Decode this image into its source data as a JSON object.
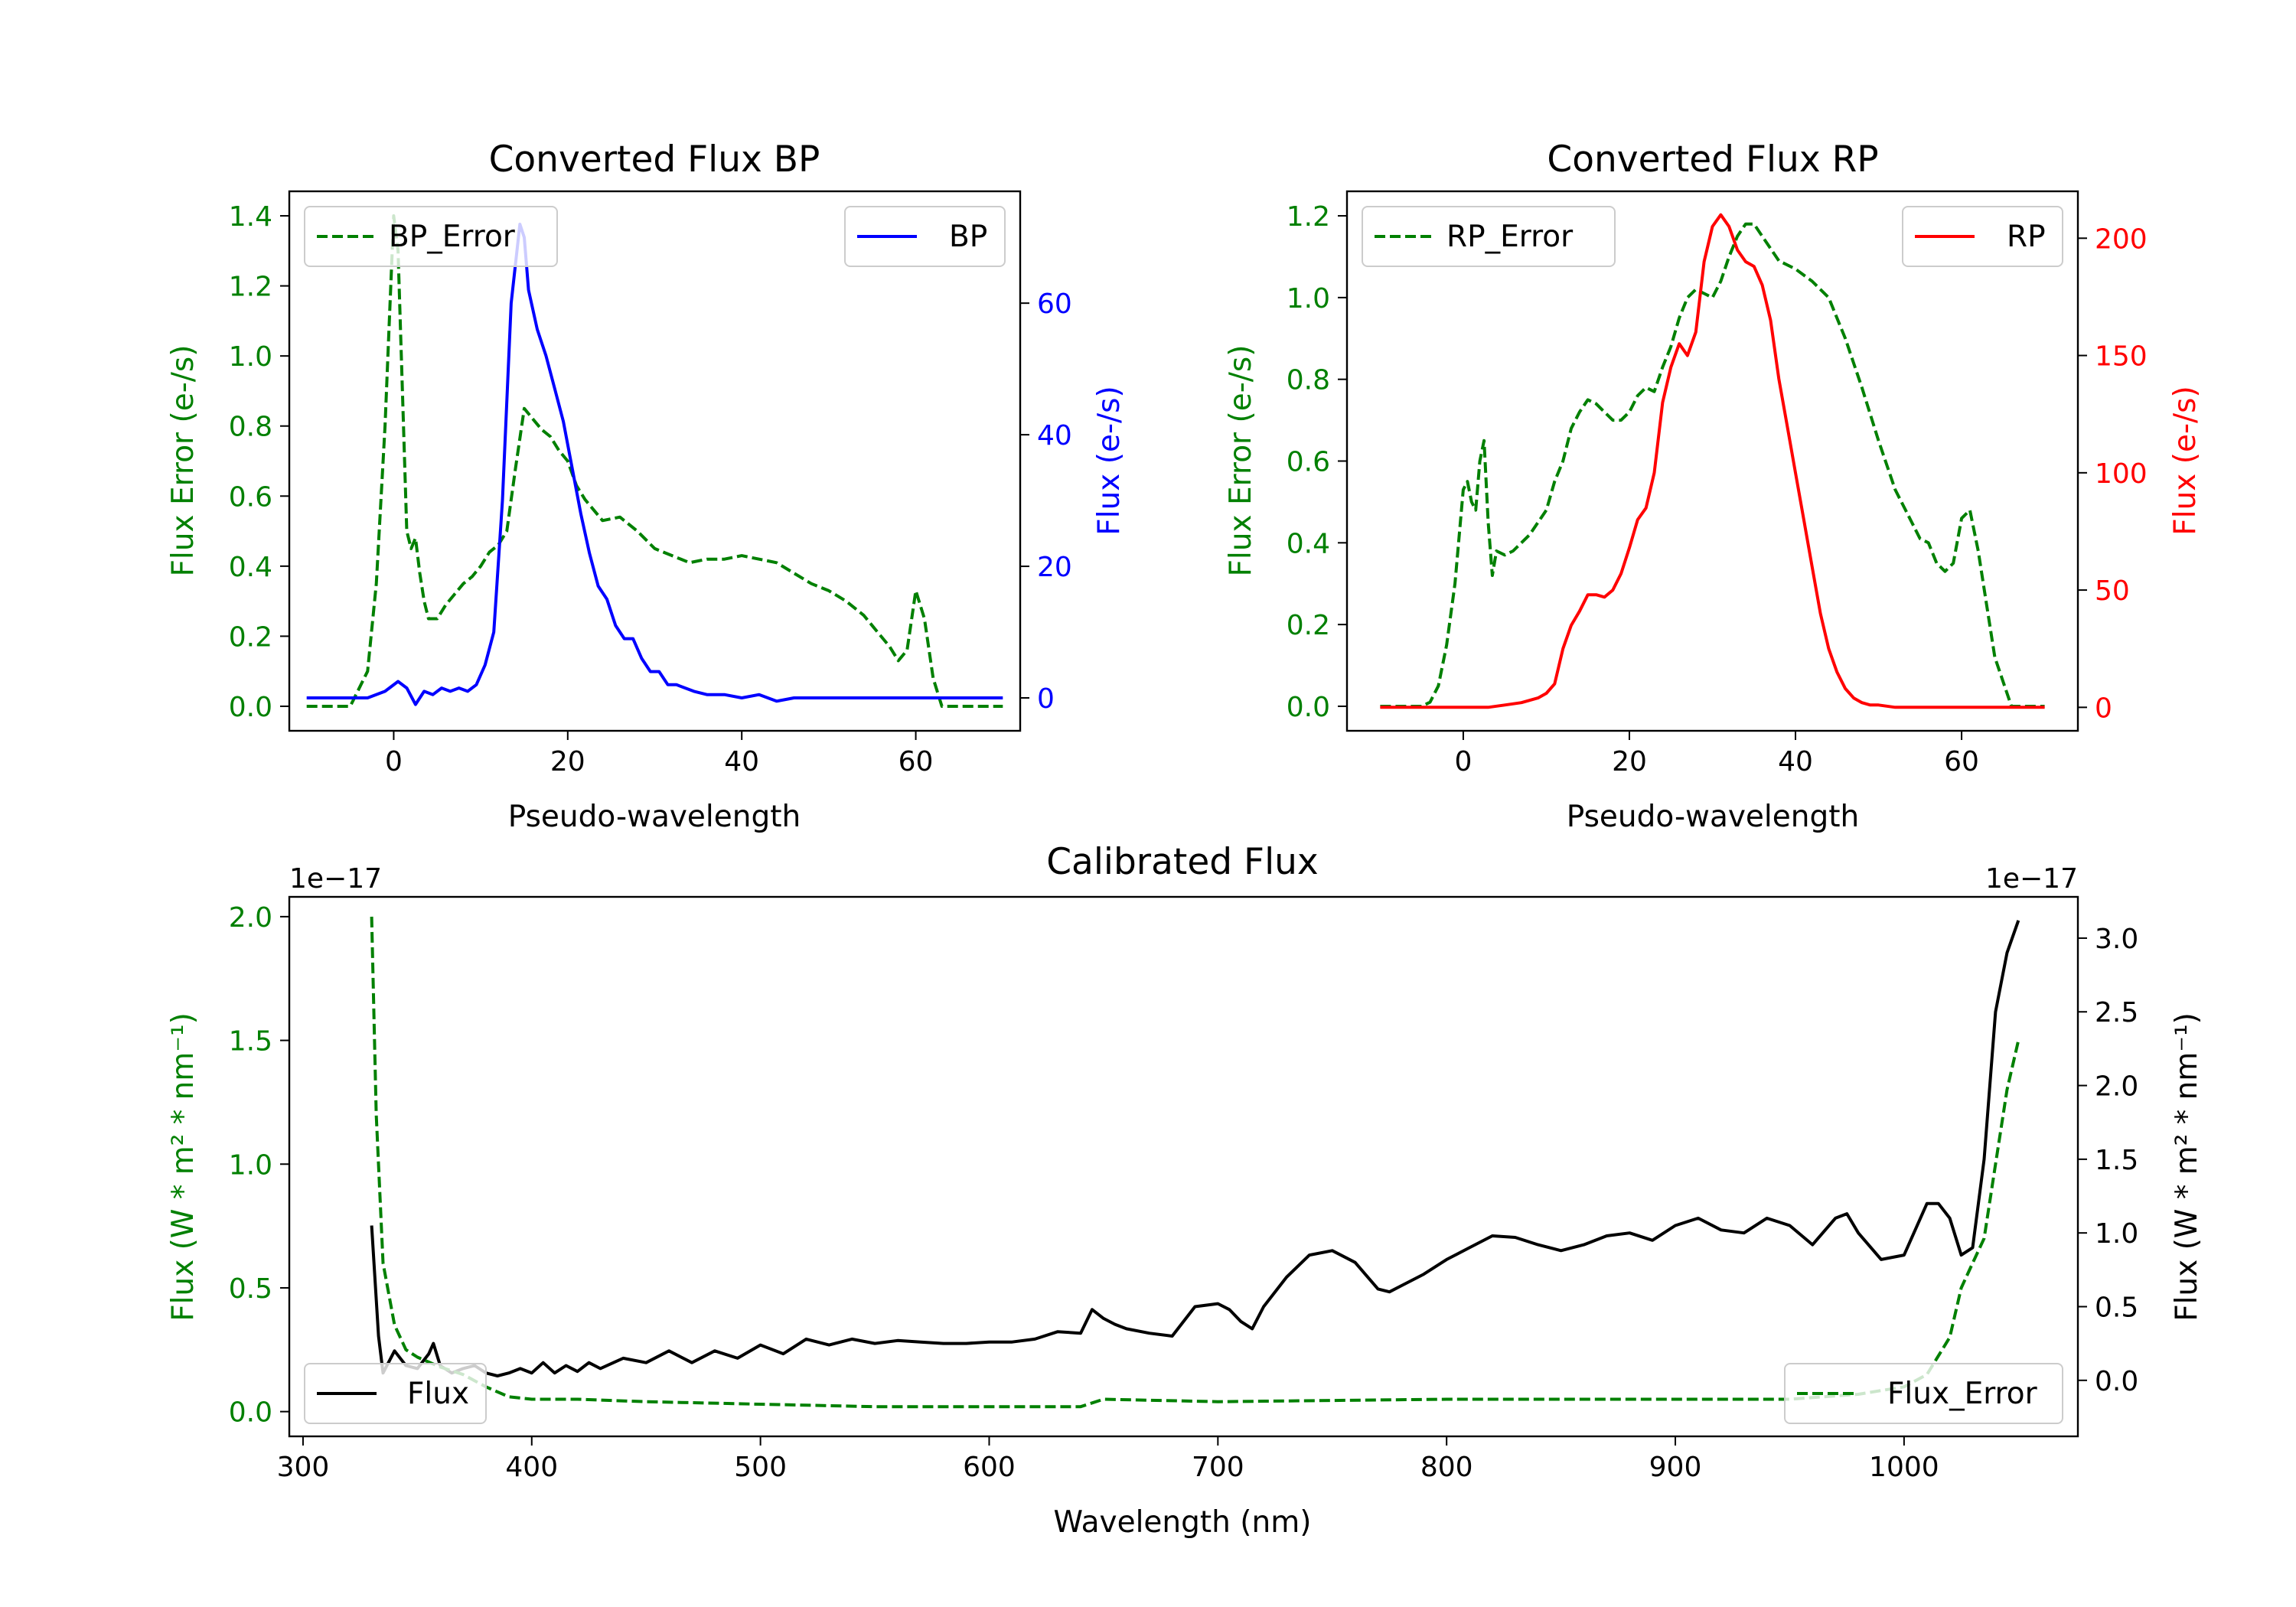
{
  "chart_data": [
    {
      "type": "line",
      "title": "Converted Flux BP",
      "xlabel": "Pseudo-wavelength",
      "ylabel_left": "Flux Error (e-/s)",
      "ylabel_right": "Flux (e-/s)",
      "xlim": [
        -12,
        72
      ],
      "ylim_left": [
        -0.07,
        1.47
      ],
      "ylim_right": [
        -5,
        77
      ],
      "xticks": [
        0,
        20,
        40,
        60
      ],
      "xtick_labels": [
        "0",
        "20",
        "40",
        "60"
      ],
      "yticks_left": [
        0.0,
        0.2,
        0.4,
        0.6,
        0.8,
        1.0,
        1.2,
        1.4
      ],
      "ytick_labels_left": [
        "0.0",
        "0.2",
        "0.4",
        "0.6",
        "0.8",
        "1.0",
        "1.2",
        "1.4"
      ],
      "yticks_right": [
        0,
        20,
        40,
        60
      ],
      "ytick_labels_right": [
        "0",
        "20",
        "40",
        "60"
      ],
      "left_color": "#008000",
      "right_color": "#0000ff",
      "legend_left": {
        "label": "BP_Error",
        "position": "upper left"
      },
      "legend_right": {
        "label": "BP",
        "position": "upper right"
      },
      "series": [
        {
          "name": "BP_Error",
          "axis": "left",
          "color": "#008000",
          "style": "dashed",
          "x": [
            -10,
            -5,
            -3,
            -2,
            -1,
            -0.5,
            0,
            0.5,
            1,
            1.5,
            2,
            2.5,
            3,
            3.5,
            4,
            5,
            6,
            7,
            8,
            9,
            10,
            11,
            12,
            13,
            14,
            15,
            16,
            17,
            18,
            19,
            20,
            21,
            22,
            24,
            26,
            28,
            30,
            32,
            34,
            36,
            38,
            40,
            42,
            44,
            46,
            48,
            50,
            52,
            54,
            56,
            57,
            58,
            59,
            60,
            61,
            62,
            63,
            65,
            70
          ],
          "y": [
            0.0,
            0.0,
            0.1,
            0.35,
            0.8,
            1.1,
            1.4,
            1.3,
            0.9,
            0.5,
            0.45,
            0.48,
            0.38,
            0.3,
            0.25,
            0.25,
            0.29,
            0.32,
            0.35,
            0.37,
            0.4,
            0.44,
            0.46,
            0.5,
            0.68,
            0.85,
            0.82,
            0.79,
            0.77,
            0.73,
            0.7,
            0.63,
            0.59,
            0.53,
            0.54,
            0.5,
            0.45,
            0.43,
            0.41,
            0.42,
            0.42,
            0.43,
            0.42,
            0.41,
            0.38,
            0.35,
            0.33,
            0.3,
            0.26,
            0.2,
            0.17,
            0.13,
            0.16,
            0.33,
            0.25,
            0.08,
            0.0,
            0.0,
            0.0
          ]
        },
        {
          "name": "BP",
          "axis": "right",
          "color": "#0000ff",
          "style": "solid",
          "x": [
            -10,
            -3,
            -1,
            0.5,
            1.5,
            2.5,
            3.5,
            4.5,
            5.5,
            6.5,
            7.5,
            8.5,
            9.5,
            10.5,
            11.5,
            12.5,
            13.5,
            14.5,
            15,
            15.5,
            16.5,
            17.5,
            18.5,
            19.5,
            20.5,
            21.5,
            22.5,
            23.5,
            24.5,
            25.5,
            26.5,
            27.5,
            28.5,
            29.5,
            30.5,
            31.5,
            32.5,
            33.5,
            34.5,
            36,
            38,
            40,
            42,
            44,
            46,
            50,
            55,
            60,
            65,
            70
          ],
          "y": [
            0,
            0,
            1,
            2.5,
            1.5,
            -1,
            1,
            0.5,
            1.5,
            1,
            1.5,
            1,
            2,
            5,
            10,
            30,
            60,
            72,
            70,
            62,
            56,
            52,
            47,
            42,
            35,
            28,
            22,
            17,
            15,
            11,
            9,
            9,
            6,
            4,
            4,
            2,
            2,
            1.5,
            1,
            0.5,
            0.5,
            0,
            0.5,
            -0.5,
            0,
            0,
            0,
            0,
            0,
            0
          ]
        }
      ]
    },
    {
      "type": "line",
      "title": "Converted Flux RP",
      "xlabel": "Pseudo-wavelength",
      "ylabel_left": "Flux Error (e-/s)",
      "ylabel_right": "Flux (e-/s)",
      "xlim": [
        -14,
        74
      ],
      "ylim_left": [
        -0.06,
        1.26
      ],
      "ylim_right": [
        -10,
        220
      ],
      "xticks": [
        0,
        20,
        40,
        60
      ],
      "xtick_labels": [
        "0",
        "20",
        "40",
        "60"
      ],
      "yticks_left": [
        0.0,
        0.2,
        0.4,
        0.6,
        0.8,
        1.0,
        1.2
      ],
      "ytick_labels_left": [
        "0.0",
        "0.2",
        "0.4",
        "0.6",
        "0.8",
        "1.0",
        "1.2"
      ],
      "yticks_right": [
        0,
        50,
        100,
        150,
        200
      ],
      "ytick_labels_right": [
        "0",
        "50",
        "100",
        "150",
        "200"
      ],
      "left_color": "#008000",
      "right_color": "#ff0000",
      "legend_left": {
        "label": "RP_Error",
        "position": "upper left"
      },
      "legend_right": {
        "label": "RP",
        "position": "upper right"
      },
      "series": [
        {
          "name": "RP_Error",
          "axis": "left",
          "color": "#008000",
          "style": "dashed",
          "x": [
            -10,
            -5,
            -4,
            -3,
            -2,
            -1,
            0,
            0.5,
            1,
            1.5,
            2,
            2.5,
            3,
            3.5,
            4,
            5,
            6,
            7,
            8,
            9,
            10,
            11,
            12,
            13,
            14,
            15,
            16,
            17,
            18,
            19,
            20,
            21,
            22,
            23,
            24,
            25,
            26,
            27,
            28,
            29,
            30,
            31,
            32,
            33,
            34,
            35,
            36,
            37,
            38,
            40,
            42,
            44,
            46,
            48,
            50,
            52,
            54,
            55,
            56,
            57,
            58,
            59,
            60,
            61,
            62,
            63,
            64,
            66,
            70
          ],
          "y": [
            0.0,
            0.0,
            0.01,
            0.05,
            0.15,
            0.3,
            0.53,
            0.55,
            0.5,
            0.48,
            0.6,
            0.65,
            0.45,
            0.32,
            0.38,
            0.37,
            0.38,
            0.4,
            0.42,
            0.45,
            0.48,
            0.55,
            0.6,
            0.68,
            0.72,
            0.75,
            0.74,
            0.72,
            0.7,
            0.7,
            0.72,
            0.76,
            0.78,
            0.77,
            0.83,
            0.88,
            0.95,
            1.0,
            1.02,
            1.01,
            1.0,
            1.04,
            1.1,
            1.15,
            1.18,
            1.18,
            1.15,
            1.12,
            1.09,
            1.07,
            1.04,
            1.0,
            0.9,
            0.78,
            0.65,
            0.53,
            0.45,
            0.41,
            0.4,
            0.35,
            0.33,
            0.35,
            0.46,
            0.48,
            0.38,
            0.25,
            0.12,
            0.0,
            0.0
          ]
        },
        {
          "name": "RP",
          "axis": "right",
          "color": "#ff0000",
          "style": "solid",
          "x": [
            -10,
            0,
            3,
            5,
            7,
            9,
            10,
            11,
            12,
            13,
            14,
            15,
            16,
            17,
            18,
            19,
            20,
            21,
            22,
            23,
            24,
            25,
            26,
            27,
            28,
            29,
            30,
            31,
            32,
            33,
            34,
            35,
            36,
            37,
            38,
            39,
            40,
            41,
            42,
            43,
            44,
            45,
            46,
            47,
            48,
            49,
            50,
            52,
            55,
            60,
            65,
            70
          ],
          "y": [
            0,
            0,
            0,
            1,
            2,
            4,
            6,
            10,
            25,
            35,
            41,
            48,
            48,
            47,
            50,
            57,
            68,
            80,
            85,
            100,
            130,
            145,
            155,
            150,
            160,
            190,
            205,
            210,
            205,
            195,
            190,
            188,
            180,
            165,
            140,
            120,
            100,
            80,
            60,
            40,
            25,
            15,
            8,
            4,
            2,
            1,
            1,
            0,
            0,
            0,
            0,
            0
          ]
        }
      ]
    },
    {
      "type": "line",
      "title": "Calibrated Flux",
      "xlabel": "Wavelength (nm)",
      "ylabel_left": "Flux (W * m² * nm⁻¹)",
      "ylabel_right": "Flux (W * m² * nm⁻¹)",
      "offset_left": "1e−17",
      "offset_right": "1e−17",
      "xlim": [
        294,
        1076
      ],
      "ylim_left": [
        -0.1,
        2.08
      ],
      "ylim_right": [
        -0.38,
        3.28
      ],
      "xticks": [
        300,
        400,
        500,
        600,
        700,
        800,
        900,
        1000
      ],
      "xtick_labels": [
        "300",
        "400",
        "500",
        "600",
        "700",
        "800",
        "900",
        "1000"
      ],
      "yticks_left": [
        0.0,
        0.5,
        1.0,
        1.5,
        2.0
      ],
      "ytick_labels_left": [
        "0.0",
        "0.5",
        "1.0",
        "1.5",
        "2.0"
      ],
      "yticks_right": [
        0.0,
        0.5,
        1.0,
        1.5,
        2.0,
        2.5,
        3.0
      ],
      "ytick_labels_right": [
        "0.0",
        "0.5",
        "1.0",
        "1.5",
        "2.0",
        "2.5",
        "3.0"
      ],
      "left_color": "#008000",
      "right_color": "#000000",
      "legend_left": {
        "label": "Flux_Error",
        "position": "lower right"
      },
      "legend_right": {
        "label": "Flux",
        "position": "lower left"
      },
      "series": [
        {
          "name": "Flux",
          "axis": "right",
          "color": "#000000",
          "style": "solid",
          "x": [
            330,
            333,
            335,
            340,
            345,
            350,
            355,
            357,
            360,
            365,
            370,
            375,
            380,
            385,
            390,
            395,
            400,
            405,
            410,
            415,
            420,
            425,
            430,
            440,
            450,
            460,
            470,
            480,
            490,
            500,
            510,
            520,
            530,
            540,
            550,
            560,
            570,
            580,
            590,
            600,
            610,
            620,
            630,
            640,
            645,
            650,
            655,
            660,
            670,
            680,
            690,
            700,
            705,
            710,
            715,
            720,
            730,
            740,
            750,
            760,
            770,
            775,
            780,
            790,
            800,
            810,
            820,
            830,
            840,
            850,
            860,
            870,
            880,
            890,
            900,
            910,
            920,
            930,
            940,
            950,
            960,
            970,
            975,
            980,
            990,
            1000,
            1010,
            1015,
            1020,
            1025,
            1030,
            1035,
            1040,
            1045,
            1050
          ],
          "y": [
            1.05,
            0.3,
            0.05,
            0.2,
            0.1,
            0.08,
            0.18,
            0.25,
            0.1,
            0.05,
            0.08,
            0.1,
            0.05,
            0.03,
            0.05,
            0.08,
            0.05,
            0.12,
            0.05,
            0.1,
            0.06,
            0.12,
            0.08,
            0.15,
            0.12,
            0.2,
            0.12,
            0.2,
            0.15,
            0.24,
            0.18,
            0.28,
            0.24,
            0.28,
            0.25,
            0.27,
            0.26,
            0.25,
            0.25,
            0.26,
            0.26,
            0.28,
            0.33,
            0.32,
            0.48,
            0.42,
            0.38,
            0.35,
            0.32,
            0.3,
            0.5,
            0.52,
            0.48,
            0.4,
            0.35,
            0.5,
            0.7,
            0.85,
            0.88,
            0.8,
            0.62,
            0.6,
            0.64,
            0.72,
            0.82,
            0.9,
            0.98,
            0.97,
            0.92,
            0.88,
            0.92,
            0.98,
            1.0,
            0.95,
            1.05,
            1.1,
            1.02,
            1.0,
            1.1,
            1.05,
            0.92,
            1.1,
            1.13,
            1.0,
            0.82,
            0.85,
            1.2,
            1.2,
            1.1,
            0.85,
            0.9,
            1.5,
            2.5,
            2.9,
            3.12
          ]
        },
        {
          "name": "Flux_Error",
          "axis": "left",
          "color": "#008000",
          "style": "dashed",
          "x": [
            330,
            332,
            335,
            340,
            345,
            350,
            360,
            370,
            380,
            390,
            400,
            420,
            450,
            500,
            550,
            600,
            640,
            650,
            700,
            800,
            900,
            950,
            980,
            1000,
            1010,
            1020,
            1025,
            1030,
            1035,
            1040,
            1045,
            1050
          ],
          "y": [
            2.0,
            1.2,
            0.6,
            0.35,
            0.25,
            0.22,
            0.18,
            0.15,
            0.1,
            0.06,
            0.05,
            0.05,
            0.04,
            0.03,
            0.02,
            0.02,
            0.02,
            0.05,
            0.04,
            0.05,
            0.05,
            0.05,
            0.07,
            0.1,
            0.15,
            0.3,
            0.5,
            0.6,
            0.7,
            1.0,
            1.3,
            1.5
          ]
        }
      ]
    }
  ]
}
